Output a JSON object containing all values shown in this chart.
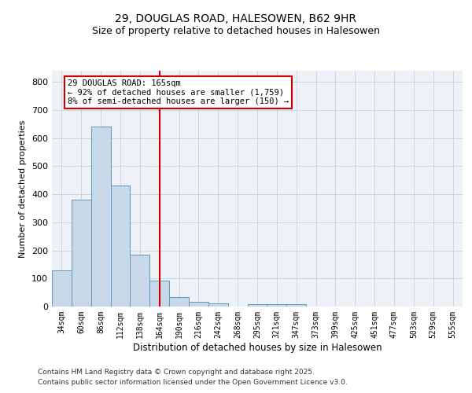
{
  "title_line1": "29, DOUGLAS ROAD, HALESOWEN, B62 9HR",
  "title_line2": "Size of property relative to detached houses in Halesowen",
  "xlabel": "Distribution of detached houses by size in Halesowen",
  "ylabel": "Number of detached properties",
  "bar_color": "#c8d8e8",
  "bar_edge_color": "#5a9abf",
  "marker_line_color": "#cc0000",
  "annotation_title": "29 DOUGLAS ROAD: 165sqm",
  "annotation_line2": "← 92% of detached houses are smaller (1,759)",
  "annotation_line3": "8% of semi-detached houses are larger (150) →",
  "annotation_box_color": "#cc0000",
  "footer_line1": "Contains HM Land Registry data © Crown copyright and database right 2025.",
  "footer_line2": "Contains public sector information licensed under the Open Government Licence v3.0.",
  "categories": [
    "34sqm",
    "60sqm",
    "86sqm",
    "112sqm",
    "138sqm",
    "164sqm",
    "190sqm",
    "216sqm",
    "242sqm",
    "268sqm",
    "295sqm",
    "321sqm",
    "347sqm",
    "373sqm",
    "399sqm",
    "425sqm",
    "451sqm",
    "477sqm",
    "503sqm",
    "529sqm",
    "555sqm"
  ],
  "values": [
    128,
    380,
    640,
    430,
    185,
    92,
    35,
    17,
    10,
    0,
    8,
    8,
    8,
    0,
    0,
    0,
    0,
    0,
    0,
    0,
    0
  ],
  "ylim": [
    0,
    840
  ],
  "yticks": [
    0,
    100,
    200,
    300,
    400,
    500,
    600,
    700,
    800
  ],
  "bg_color": "#eef2f7",
  "grid_color": "#c8d4e0"
}
